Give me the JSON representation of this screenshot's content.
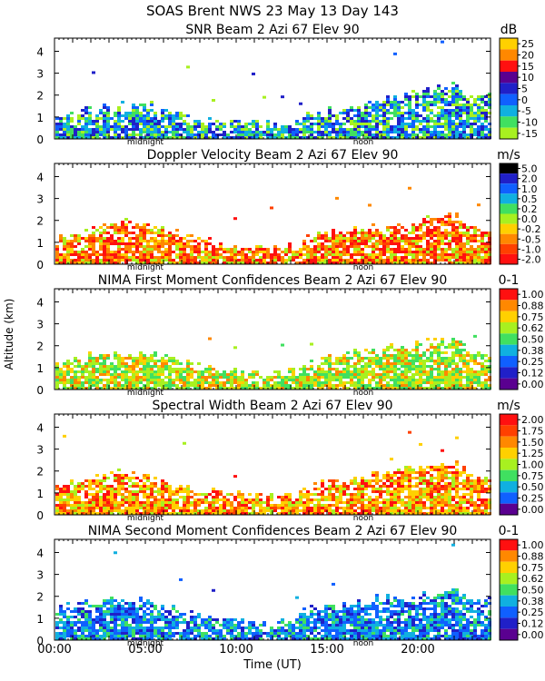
{
  "header": {
    "line1": "SOAS Brent NWS  23 May 13 Day 143"
  },
  "axes": {
    "ylabel": "Altitude (km)",
    "xlabel": "Time (UT)",
    "x_ticks": [
      "00:00",
      "05:00",
      "10:00",
      "15:00",
      "20:00"
    ],
    "x_tick_hours": [
      0,
      5,
      10,
      15,
      20
    ],
    "xlim": [
      0,
      24
    ],
    "y_ticks": [
      "0",
      "1",
      "2",
      "3",
      "4"
    ],
    "ylim": [
      0,
      4.6
    ],
    "midnight_label": "midnight",
    "noon_label": "noon",
    "midnight_hour": 5,
    "noon_hour": 17
  },
  "chart_data": [
    {
      "type": "heatmap",
      "title": "SNR Beam 2 Azi  67 Elev 90",
      "unit": "dB",
      "legend_labels": [
        "25",
        "20",
        "15",
        "10",
        "5",
        "0",
        "-5",
        "-10",
        "-15"
      ],
      "legend_colors": [
        "#ffd000",
        "#ff8800",
        "#ff1010",
        "#5a0090",
        "#2020c8",
        "#1060ff",
        "#10b0e0",
        "#40e060",
        "#a8f020"
      ],
      "top_km": [
        1.2,
        1.3,
        1.5,
        1.5,
        1.6,
        1.6,
        1.4,
        1.2,
        1.0,
        0.9,
        0.8,
        0.8,
        0.7,
        0.7,
        1.2,
        1.3,
        1.5,
        1.6,
        1.8,
        2.0,
        2.2,
        2.4,
        2.5,
        2.0
      ],
      "palette": [
        "#a8f020",
        "#40e060",
        "#10b0e0",
        "#1060ff",
        "#2020c8"
      ]
    },
    {
      "type": "heatmap",
      "title": "Doppler Velocity Beam 2 Azi  67 Elev 90",
      "unit": "m/s",
      "legend_labels": [
        "5.0",
        "2.0",
        "1.0",
        "0.5",
        "0.2",
        "0.0",
        "-0.2",
        "-0.5",
        "-1.0",
        "-2.0"
      ],
      "legend_colors": [
        "#000000",
        "#2020c8",
        "#1060ff",
        "#10b0e0",
        "#40e060",
        "#a8f020",
        "#ffd000",
        "#ff8800",
        "#ff4000",
        "#ff1010"
      ],
      "top_km": [
        1.2,
        1.5,
        1.6,
        1.8,
        2.0,
        1.8,
        1.6,
        1.4,
        1.2,
        1.0,
        0.9,
        0.8,
        0.8,
        0.9,
        1.4,
        1.5,
        1.6,
        1.7,
        1.8,
        1.9,
        2.0,
        2.2,
        2.3,
        1.8
      ],
      "palette": [
        "#ff1010",
        "#ff4000",
        "#ff8800",
        "#ffd000",
        "#a8f020",
        "#ff1010",
        "#ff8800"
      ]
    },
    {
      "type": "heatmap",
      "title": "NIMA First Moment Confidences Beam 2 Azi  67 Elev 90",
      "unit": "0-1",
      "legend_labels": [
        "1.00",
        "0.88",
        "0.75",
        "0.62",
        "0.50",
        "0.38",
        "0.25",
        "0.12",
        "0.00"
      ],
      "legend_colors": [
        "#ff1010",
        "#ff8800",
        "#ffd000",
        "#a8f020",
        "#40e060",
        "#10b0e0",
        "#1060ff",
        "#2020c8",
        "#5a0090"
      ],
      "top_km": [
        1.3,
        1.5,
        1.6,
        1.8,
        1.7,
        1.6,
        1.5,
        1.3,
        1.1,
        1.0,
        0.9,
        0.8,
        0.8,
        0.9,
        1.3,
        1.5,
        1.6,
        1.8,
        2.0,
        2.1,
        2.2,
        2.3,
        2.4,
        1.8
      ],
      "palette": [
        "#a8f020",
        "#40e060",
        "#ffd000",
        "#a8f020",
        "#ff8800",
        "#40e060"
      ]
    },
    {
      "type": "heatmap",
      "title": "Spectral Width Beam 2 Azi  67 Elev 90",
      "unit": "m/s",
      "legend_labels": [
        "2.00",
        "1.75",
        "1.50",
        "1.25",
        "1.00",
        "0.75",
        "0.50",
        "0.25",
        "0.00"
      ],
      "legend_colors": [
        "#ff1010",
        "#ff4000",
        "#ff8800",
        "#ffd000",
        "#a8f020",
        "#40e060",
        "#10b0e0",
        "#1060ff",
        "#5a0090"
      ],
      "top_km": [
        1.4,
        1.6,
        1.8,
        2.0,
        1.9,
        1.8,
        1.6,
        1.4,
        1.2,
        1.1,
        1.0,
        0.9,
        0.9,
        1.0,
        1.4,
        1.5,
        1.7,
        1.8,
        2.0,
        2.1,
        2.2,
        2.3,
        2.4,
        1.9
      ],
      "palette": [
        "#ff8800",
        "#ffd000",
        "#a8f020",
        "#ff1010",
        "#ff4000",
        "#ffd000"
      ]
    },
    {
      "type": "heatmap",
      "title": "NIMA Second Moment Confidences Beam 2 Azi  67 Elev 90",
      "unit": "0-1",
      "legend_labels": [
        "1.00",
        "0.88",
        "0.75",
        "0.62",
        "0.50",
        "0.38",
        "0.25",
        "0.12",
        "0.00"
      ],
      "legend_colors": [
        "#ff1010",
        "#ff8800",
        "#ffd000",
        "#a8f020",
        "#40e060",
        "#10b0e0",
        "#1060ff",
        "#2020c8",
        "#5a0090"
      ],
      "top_km": [
        1.5,
        1.7,
        1.8,
        2.0,
        1.9,
        1.8,
        1.6,
        1.4,
        1.2,
        1.1,
        1.0,
        0.9,
        0.8,
        1.0,
        1.5,
        1.6,
        1.7,
        1.8,
        2.0,
        2.1,
        2.2,
        2.3,
        2.4,
        1.9
      ],
      "palette": [
        "#10b0e0",
        "#1060ff",
        "#2020c8",
        "#10b0e0",
        "#40e060",
        "#1060ff"
      ]
    }
  ]
}
